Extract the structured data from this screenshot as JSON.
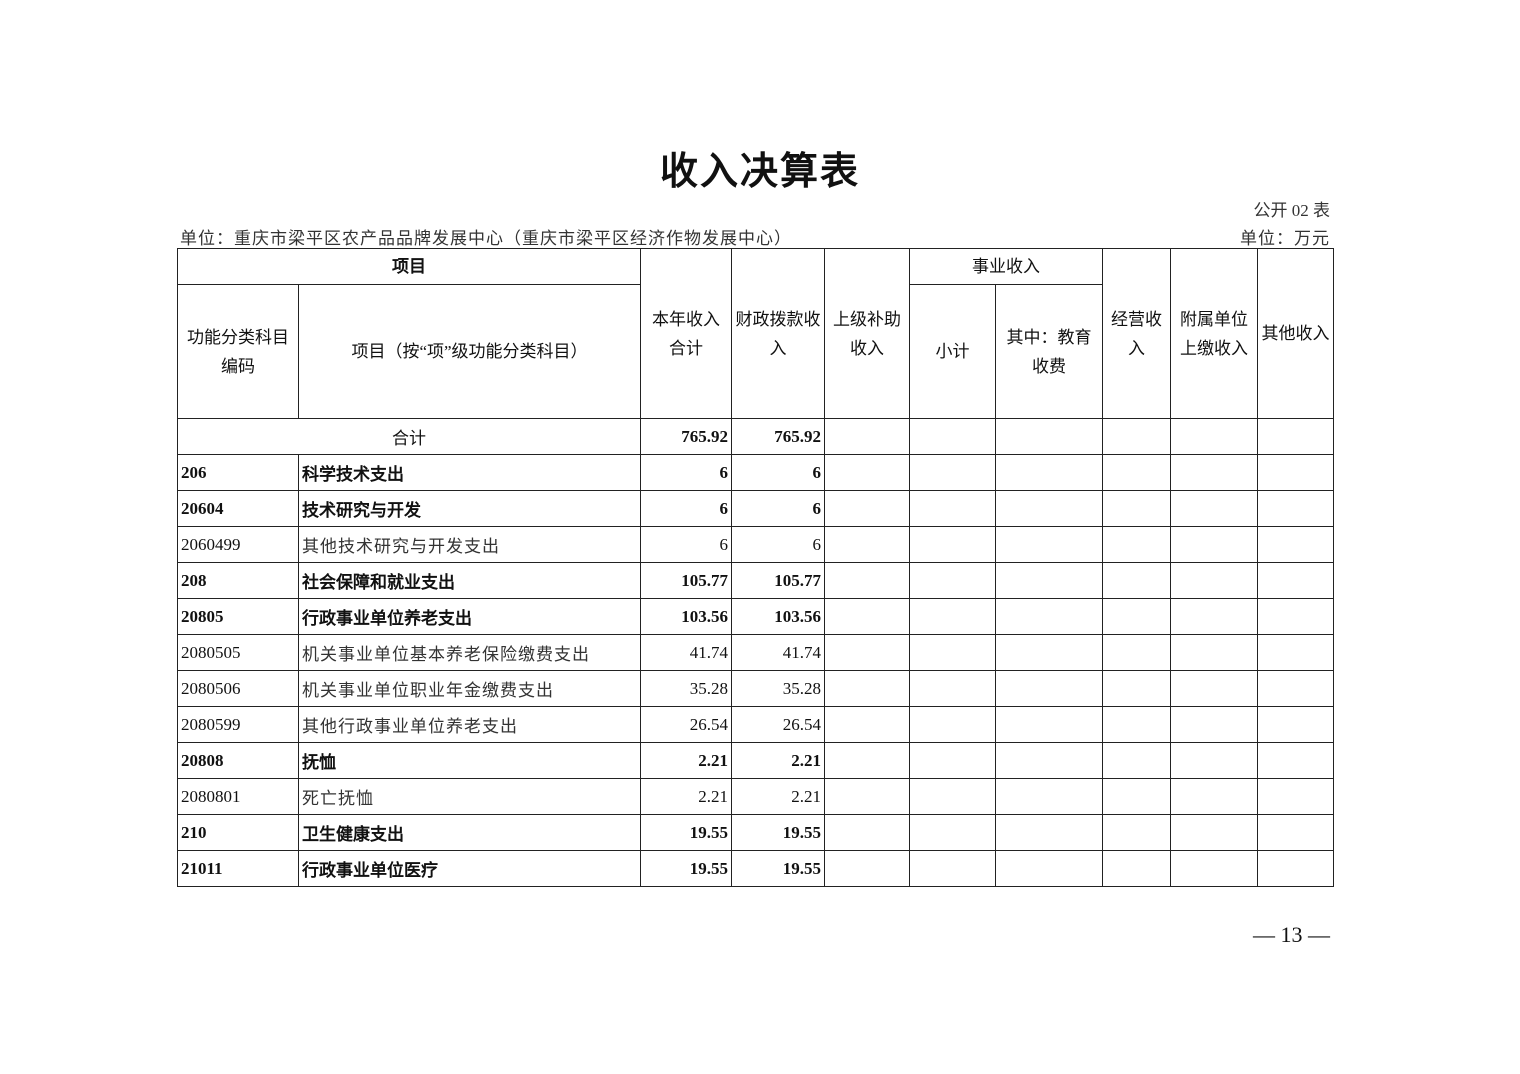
{
  "title": "收入决算表",
  "form_no": "公开 02 表",
  "unit_left": "单位：重庆市梁平区农产品品牌发展中心（重庆市梁平区经济作物发展中心）",
  "unit_right": "单位：万元",
  "headers": {
    "project": "项目",
    "code": "功能分类科目编码",
    "name": "项目（按“项”级功能分类科目）",
    "total": "本年收入合计",
    "fiscal": "财政拨款收入",
    "superior": "上级补助收入",
    "business": "事业收入",
    "subtotal": "小计",
    "education": "其中：教育收费",
    "operating": "经营收入",
    "affiliated": "附属单位上缴收入",
    "other": "其他收入"
  },
  "total_row": {
    "label": "合计",
    "total": "765.92",
    "fiscal": "765.92"
  },
  "rows": [
    {
      "code": "206",
      "name": "科学技术支出",
      "total": "6",
      "fiscal": "6",
      "bold": true
    },
    {
      "code": "20604",
      "name": "技术研究与开发",
      "total": "6",
      "fiscal": "6",
      "bold": true
    },
    {
      "code": "2060499",
      "name": "其他技术研究与开发支出",
      "total": "6",
      "fiscal": "6",
      "bold": false
    },
    {
      "code": "208",
      "name": "社会保障和就业支出",
      "total": "105.77",
      "fiscal": "105.77",
      "bold": true
    },
    {
      "code": "20805",
      "name": "行政事业单位养老支出",
      "total": "103.56",
      "fiscal": "103.56",
      "bold": true
    },
    {
      "code": "2080505",
      "name": "机关事业单位基本养老保险缴费支出",
      "total": "41.74",
      "fiscal": "41.74",
      "bold": false
    },
    {
      "code": "2080506",
      "name": "机关事业单位职业年金缴费支出",
      "total": "35.28",
      "fiscal": "35.28",
      "bold": false
    },
    {
      "code": "2080599",
      "name": "其他行政事业单位养老支出",
      "total": "26.54",
      "fiscal": "26.54",
      "bold": false
    },
    {
      "code": "20808",
      "name": "抚恤",
      "total": "2.21",
      "fiscal": "2.21",
      "bold": true
    },
    {
      "code": "2080801",
      "name": "死亡抚恤",
      "total": "2.21",
      "fiscal": "2.21",
      "bold": false
    },
    {
      "code": "210",
      "name": "卫生健康支出",
      "total": "19.55",
      "fiscal": "19.55",
      "bold": true
    },
    {
      "code": "21011",
      "name": "行政事业单位医疗",
      "total": "19.55",
      "fiscal": "19.55",
      "bold": true
    }
  ],
  "page_number": "— 13 —"
}
